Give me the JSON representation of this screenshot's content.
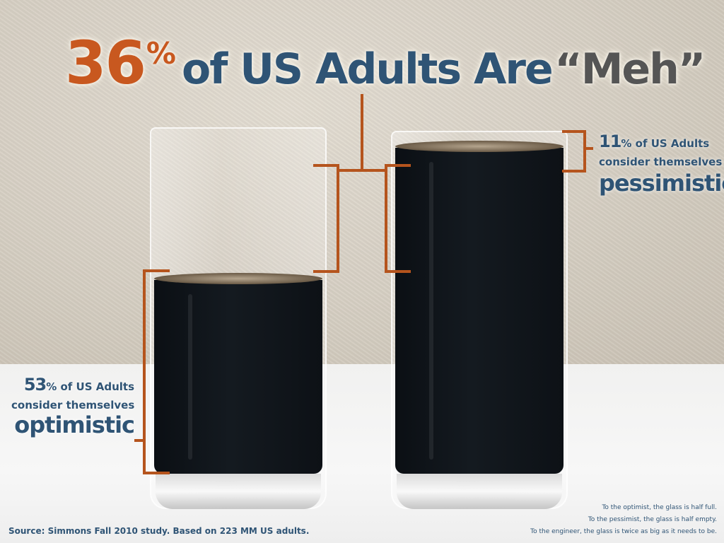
{
  "title": {
    "percent_value": "36",
    "percent_sign": "%",
    "rest": "of US Adults Are",
    "meh": "“Meh”"
  },
  "pessimistic": {
    "percent_value": "11",
    "percent_text": "% of US Adults",
    "line2": "consider themselves",
    "word": "pessimistic"
  },
  "optimistic": {
    "percent_value": "53",
    "percent_text": "% of US Adults",
    "line2": "consider themselves",
    "word": "optimistic"
  },
  "glasses": {
    "left_fill_fraction": 0.57,
    "right_fill_fraction": 0.97
  },
  "source": "Source: Simmons Fall 2010 study. Based on 223 MM  US adults.",
  "notes": [
    "To the optimist, the glass is half full.",
    "To the pessimist, the glass is half empty.",
    "To the engineer, the glass is twice as big as it needs to be."
  ],
  "colors": {
    "accent_orange": "#c8581f",
    "text_blue": "#2f5475",
    "meh_gray": "#555555",
    "bracket_orange": "#b5541d"
  }
}
